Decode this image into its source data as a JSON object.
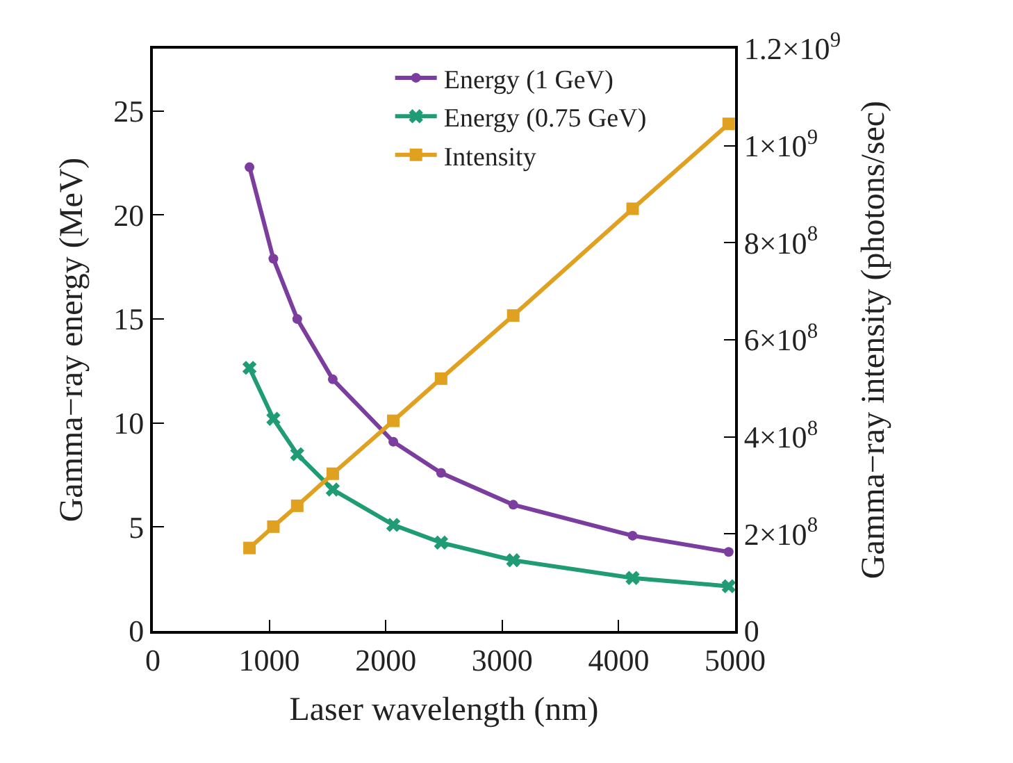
{
  "chart_data": {
    "type": "line",
    "xlabel": "Laser wavelength (nm)",
    "ylabel": "Gamma−ray energy (MeV)",
    "y2label": "Gamma−ray intensity (photons/sec)",
    "x": [
      830,
      1035,
      1240,
      1545,
      2065,
      2475,
      3095,
      4120,
      4945
    ],
    "series": [
      {
        "name": "Energy (1 GeV)",
        "color": "#7b3d9e",
        "marker": "circle",
        "values": [
          22.3,
          17.9,
          15.0,
          12.1,
          9.1,
          7.6,
          6.07,
          4.58,
          3.8
        ]
      },
      {
        "name": "Energy (0.75 GeV)",
        "color": "#1f9c74",
        "marker": "cross",
        "values": [
          12.65,
          10.2,
          8.5,
          6.8,
          5.1,
          4.25,
          3.4,
          2.55,
          2.15
        ]
      },
      {
        "name": "Intensity",
        "color": "#e0a020",
        "marker": "square",
        "axis": "y2",
        "values": [
          171000000,
          215000000,
          258000000,
          324000000,
          433000000,
          520000000,
          650000000,
          870000000,
          1045000000
        ]
      }
    ],
    "xlim": [
      0,
      5000
    ],
    "xticks": [
      0,
      1000,
      2000,
      3000,
      4000,
      5000
    ],
    "ylim": [
      0,
      28
    ],
    "yticks": [
      0,
      5,
      10,
      15,
      20,
      25
    ],
    "y2lim": [
      0,
      1200000000
    ],
    "y2ticks": [
      0,
      {
        "value": 200000000,
        "label": "2×10$^{8}$"
      },
      {
        "value": 400000000,
        "label": "4×10$^{8}$"
      },
      {
        "value": 600000000,
        "label": "6×10$^{8}$"
      },
      {
        "value": 800000000,
        "label": "8×10$^{8}$"
      },
      {
        "value": 1000000000,
        "label": "1×10$^{9}$"
      },
      {
        "value": 1200000000,
        "label": "1.2×10$^{9}$"
      }
    ],
    "legend": "top right",
    "line_style": "solid"
  }
}
